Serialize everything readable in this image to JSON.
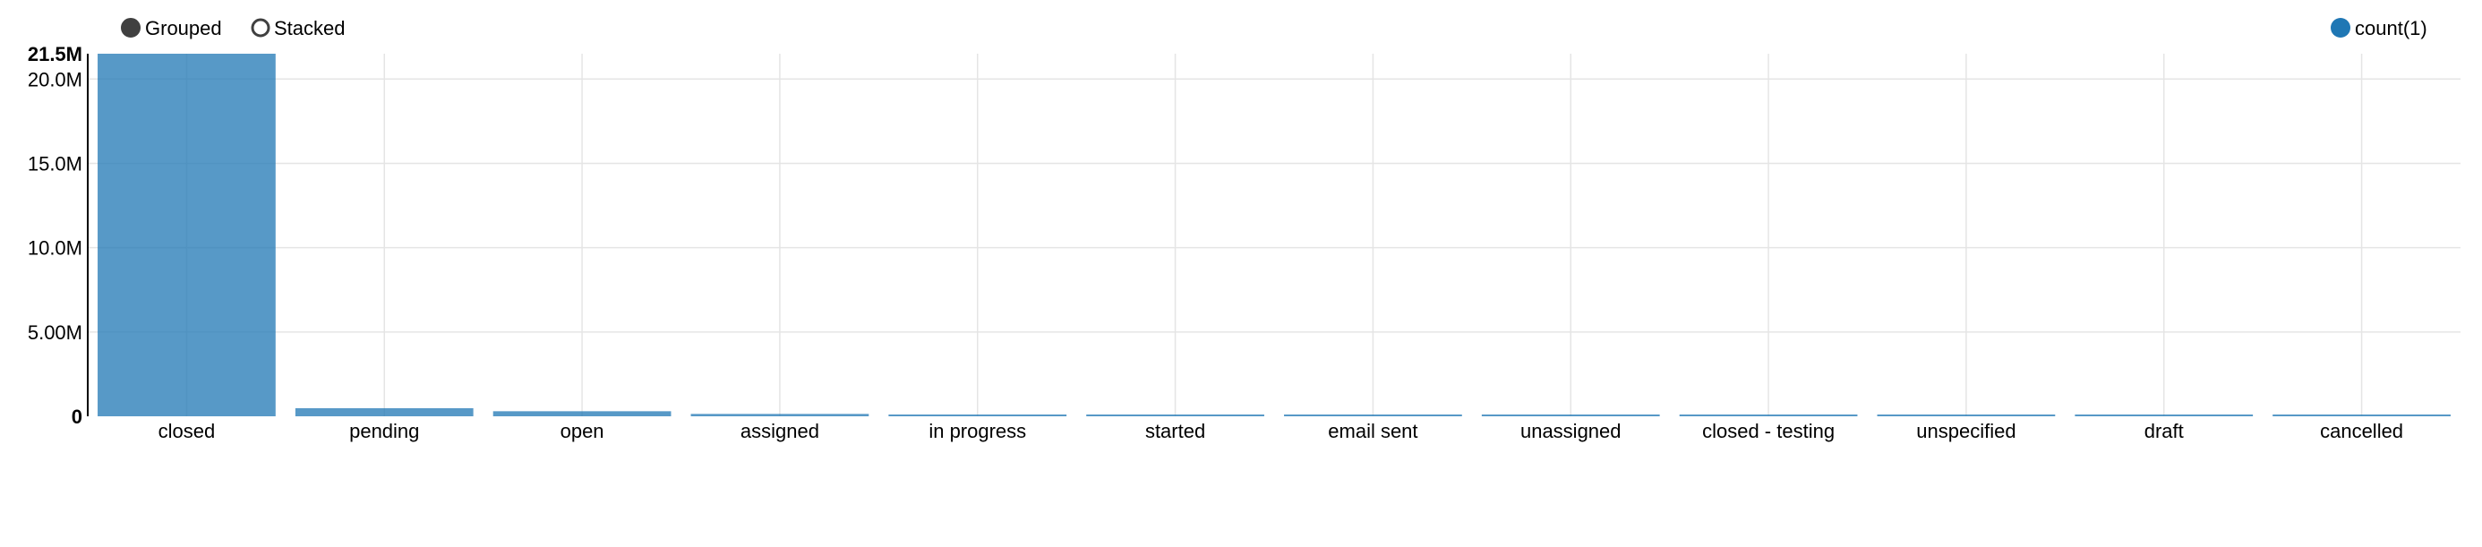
{
  "controls": {
    "grouped_label": "Grouped",
    "stacked_label": "Stacked",
    "selected": "Grouped"
  },
  "legend": {
    "items": [
      {
        "label": "count(1)",
        "color": "#1f77b4"
      }
    ],
    "placement": "top-right"
  },
  "colors": {
    "bar": "#1f77b4",
    "grid": "#e5e5e5",
    "axis": "#000000"
  },
  "chart_data": {
    "type": "bar",
    "categories": [
      "closed",
      "pending",
      "open",
      "assigned",
      "in progress",
      "started",
      "email sent",
      "unassigned",
      "closed - testing",
      "unspecified",
      "draft",
      "cancelled"
    ],
    "series": [
      {
        "name": "count(1)",
        "values": [
          21500000,
          480000,
          300000,
          140000,
          70000,
          60000,
          50000,
          45000,
          40000,
          35000,
          30000,
          25000
        ]
      }
    ],
    "ylim": [
      0,
      21500000
    ],
    "y_ticks": [
      {
        "value": 0,
        "label": "0"
      },
      {
        "value": 5000000,
        "label": "5.00M"
      },
      {
        "value": 10000000,
        "label": "10.0M"
      },
      {
        "value": 15000000,
        "label": "15.0M"
      },
      {
        "value": 20000000,
        "label": "20.0M"
      },
      {
        "value": 21500000,
        "label": "21.5M"
      }
    ],
    "grid": true,
    "legend": "top-right"
  }
}
